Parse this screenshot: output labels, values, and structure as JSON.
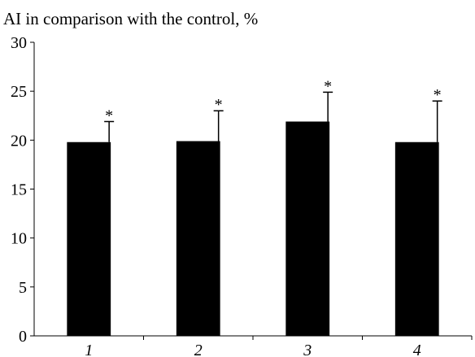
{
  "chart_data": {
    "type": "bar",
    "title": "AI in comparison with the control, %",
    "xlabel": "",
    "ylabel": "",
    "categories": [
      "1",
      "2",
      "3",
      "4"
    ],
    "values": [
      19.8,
      19.9,
      21.9,
      19.8
    ],
    "error_upper": [
      21.9,
      23.0,
      24.9,
      24.0
    ],
    "annotations": [
      "*",
      "*",
      "*",
      "*"
    ],
    "ylim": [
      0,
      30
    ],
    "yticks": [
      0,
      5,
      10,
      15,
      20,
      25,
      30
    ],
    "grid": false,
    "bar_color": "#000000"
  }
}
